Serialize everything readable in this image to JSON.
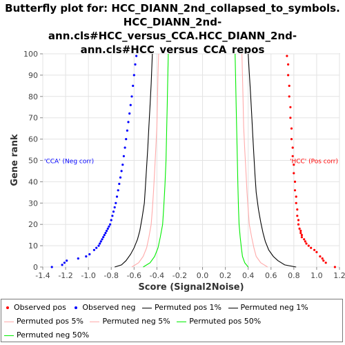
{
  "title_lines": [
    "Butterfly plot for: HCC_DIANN_2nd_collapsed_to_symbols.",
    "HCC_DIANN_2nd-ann.cls#HCC_versus_CCA.HCC_DIANN_2nd-",
    "ann.cls#HCC_versus_CCA_repos"
  ],
  "chart_data": {
    "type": "scatter",
    "xlabel": "Score (Signal2Noise)",
    "ylabel": "Gene rank",
    "xlim": [
      -1.4,
      1.2
    ],
    "ylim": [
      0,
      100
    ],
    "x_ticks": [
      -1.4,
      -1.2,
      -1.0,
      -0.8,
      -0.6,
      -0.4,
      -0.2,
      0.0,
      0.2,
      0.4,
      0.6,
      0.8,
      1.0,
      1.2
    ],
    "x_tick_labels": [
      "-1.4",
      "-1.2",
      "-1.0",
      "-0.8",
      "-0.6",
      "-0.4",
      "-0.2",
      "0.0",
      "0.2",
      "0.4",
      "0.6",
      "0.8",
      "1.0",
      "1.2"
    ],
    "y_ticks": [
      0,
      10,
      20,
      30,
      40,
      50,
      60,
      70,
      80,
      90,
      100
    ],
    "y_tick_labels": [
      "0",
      "10",
      "20",
      "30",
      "40",
      "50",
      "60",
      "70",
      "80",
      "90",
      "100"
    ],
    "grid": true,
    "legend_placement": "bottom",
    "annotations": [
      {
        "text": "'CCA' (Neg corr)",
        "x": -1.4,
        "y": 50,
        "color": "#0000ff",
        "anchor": "start"
      },
      {
        "text": "'HCC' (Pos corr)",
        "x": 1.2,
        "y": 50,
        "color": "#ff0000",
        "anchor": "end"
      }
    ],
    "series": [
      {
        "name": "Observed pos",
        "kind": "points",
        "color": "#ff0000",
        "points": [
          [
            1.16,
            0
          ],
          [
            1.08,
            2
          ],
          [
            1.06,
            3
          ],
          [
            1.05,
            4
          ],
          [
            1.03,
            5
          ],
          [
            1.0,
            7
          ],
          [
            0.98,
            8
          ],
          [
            0.95,
            9
          ],
          [
            0.93,
            10
          ],
          [
            0.91,
            11
          ],
          [
            0.9,
            12
          ],
          [
            0.89,
            13
          ],
          [
            0.87,
            14
          ],
          [
            0.87,
            15
          ],
          [
            0.86,
            16
          ],
          [
            0.86,
            17
          ],
          [
            0.85,
            18
          ],
          [
            0.84,
            20
          ],
          [
            0.84,
            22
          ],
          [
            0.83,
            24
          ],
          [
            0.83,
            27
          ],
          [
            0.82,
            30
          ],
          [
            0.82,
            33
          ],
          [
            0.81,
            36
          ],
          [
            0.81,
            40
          ],
          [
            0.8,
            44
          ],
          [
            0.8,
            48
          ],
          [
            0.79,
            52
          ],
          [
            0.79,
            56
          ],
          [
            0.78,
            60
          ],
          [
            0.78,
            65
          ],
          [
            0.77,
            70
          ],
          [
            0.77,
            75
          ],
          [
            0.76,
            80
          ],
          [
            0.76,
            85
          ],
          [
            0.75,
            90
          ],
          [
            0.75,
            95
          ],
          [
            0.74,
            99
          ]
        ]
      },
      {
        "name": "Observed neg",
        "kind": "points",
        "color": "#0000ff",
        "points": [
          [
            -1.32,
            0
          ],
          [
            -1.23,
            1
          ],
          [
            -1.21,
            2
          ],
          [
            -1.19,
            3
          ],
          [
            -1.09,
            4
          ],
          [
            -1.02,
            5
          ],
          [
            -0.99,
            6
          ],
          [
            -0.95,
            8
          ],
          [
            -0.93,
            9
          ],
          [
            -0.91,
            10
          ],
          [
            -0.9,
            11
          ],
          [
            -0.89,
            12
          ],
          [
            -0.88,
            13
          ],
          [
            -0.87,
            14
          ],
          [
            -0.86,
            15
          ],
          [
            -0.85,
            16
          ],
          [
            -0.84,
            17
          ],
          [
            -0.83,
            18
          ],
          [
            -0.82,
            19
          ],
          [
            -0.81,
            20
          ],
          [
            -0.8,
            22
          ],
          [
            -0.79,
            24
          ],
          [
            -0.78,
            26
          ],
          [
            -0.77,
            28
          ],
          [
            -0.76,
            30
          ],
          [
            -0.75,
            33
          ],
          [
            -0.74,
            36
          ],
          [
            -0.73,
            39
          ],
          [
            -0.72,
            42
          ],
          [
            -0.71,
            45
          ],
          [
            -0.7,
            48
          ],
          [
            -0.69,
            52
          ],
          [
            -0.68,
            56
          ],
          [
            -0.67,
            60
          ],
          [
            -0.66,
            64
          ],
          [
            -0.65,
            68
          ],
          [
            -0.64,
            72
          ],
          [
            -0.63,
            76
          ],
          [
            -0.62,
            80
          ],
          [
            -0.61,
            85
          ],
          [
            -0.6,
            90
          ],
          [
            -0.59,
            95
          ],
          [
            -0.58,
            99
          ]
        ]
      },
      {
        "name": "Permuted pos 1%",
        "kind": "line",
        "color": "#000000",
        "points": [
          [
            0.82,
            0
          ],
          [
            0.72,
            1
          ],
          [
            0.66,
            3
          ],
          [
            0.62,
            5
          ],
          [
            0.58,
            8
          ],
          [
            0.55,
            12
          ],
          [
            0.53,
            16
          ],
          [
            0.51,
            21
          ],
          [
            0.49,
            27
          ],
          [
            0.47,
            35
          ],
          [
            0.46,
            43
          ],
          [
            0.45,
            52
          ],
          [
            0.44,
            62
          ],
          [
            0.43,
            72
          ],
          [
            0.42,
            82
          ],
          [
            0.41,
            91
          ],
          [
            0.4,
            100
          ]
        ]
      },
      {
        "name": "Permuted neg 1%",
        "kind": "line",
        "color": "#000000",
        "points": [
          [
            -0.77,
            0
          ],
          [
            -0.71,
            1
          ],
          [
            -0.67,
            3
          ],
          [
            -0.63,
            6
          ],
          [
            -0.6,
            9
          ],
          [
            -0.57,
            13
          ],
          [
            -0.55,
            17
          ],
          [
            -0.53,
            23
          ],
          [
            -0.51,
            30
          ],
          [
            -0.5,
            38
          ],
          [
            -0.49,
            47
          ],
          [
            -0.48,
            56
          ],
          [
            -0.47,
            66
          ],
          [
            -0.46,
            76
          ],
          [
            -0.45,
            86
          ],
          [
            -0.44,
            100
          ]
        ]
      },
      {
        "name": "Permuted pos 5%",
        "kind": "line",
        "color": "#ffaaaa",
        "points": [
          [
            0.57,
            0
          ],
          [
            0.51,
            2
          ],
          [
            0.47,
            5
          ],
          [
            0.45,
            9
          ],
          [
            0.43,
            14
          ],
          [
            0.41,
            20
          ],
          [
            0.4,
            27
          ],
          [
            0.39,
            35
          ],
          [
            0.38,
            45
          ],
          [
            0.37,
            55
          ],
          [
            0.36,
            66
          ],
          [
            0.355,
            78
          ],
          [
            0.35,
            90
          ],
          [
            0.345,
            100
          ]
        ]
      },
      {
        "name": "Permuted neg 5%",
        "kind": "line",
        "color": "#ffaaaa",
        "points": [
          [
            -0.62,
            0
          ],
          [
            -0.56,
            2
          ],
          [
            -0.52,
            5
          ],
          [
            -0.49,
            9
          ],
          [
            -0.47,
            14
          ],
          [
            -0.45,
            20
          ],
          [
            -0.44,
            27
          ],
          [
            -0.43,
            35
          ],
          [
            -0.42,
            45
          ],
          [
            -0.41,
            55
          ],
          [
            -0.4,
            66
          ],
          [
            -0.395,
            78
          ],
          [
            -0.39,
            90
          ],
          [
            -0.385,
            100
          ]
        ]
      },
      {
        "name": "Permuted pos 50%",
        "kind": "line",
        "color": "#00ee00",
        "points": [
          [
            0.4,
            0
          ],
          [
            0.37,
            2
          ],
          [
            0.35,
            5
          ],
          [
            0.34,
            9
          ],
          [
            0.33,
            14
          ],
          [
            0.32,
            20
          ],
          [
            0.315,
            28
          ],
          [
            0.31,
            38
          ],
          [
            0.305,
            50
          ],
          [
            0.3,
            62
          ],
          [
            0.295,
            75
          ],
          [
            0.29,
            88
          ],
          [
            0.285,
            100
          ]
        ]
      },
      {
        "name": "Permuted neg 50%",
        "kind": "line",
        "color": "#00ee00",
        "points": [
          [
            -0.52,
            0
          ],
          [
            -0.46,
            2
          ],
          [
            -0.42,
            5
          ],
          [
            -0.39,
            9
          ],
          [
            -0.37,
            14
          ],
          [
            -0.35,
            20
          ],
          [
            -0.34,
            28
          ],
          [
            -0.33,
            38
          ],
          [
            -0.32,
            50
          ],
          [
            -0.315,
            62
          ],
          [
            -0.31,
            75
          ],
          [
            -0.305,
            88
          ],
          [
            -0.3,
            100
          ]
        ]
      }
    ]
  },
  "legend": [
    {
      "label": "Observed pos",
      "kind": "dot",
      "color": "#ff0000"
    },
    {
      "label": "Observed neg",
      "kind": "dot",
      "color": "#0000ff"
    },
    {
      "label": "Permuted pos 1%",
      "kind": "line",
      "color": "#000000"
    },
    {
      "label": "Permuted neg 1%",
      "kind": "line",
      "color": "#000000"
    },
    {
      "label": "Permuted pos 5%",
      "kind": "line",
      "color": "#ffaaaa"
    },
    {
      "label": "Permuted neg 5%",
      "kind": "line",
      "color": "#ffaaaa"
    },
    {
      "label": "Permuted pos 50%",
      "kind": "line",
      "color": "#00ee00"
    },
    {
      "label": "Permuted neg 50%",
      "kind": "line",
      "color": "#00ee00"
    }
  ]
}
